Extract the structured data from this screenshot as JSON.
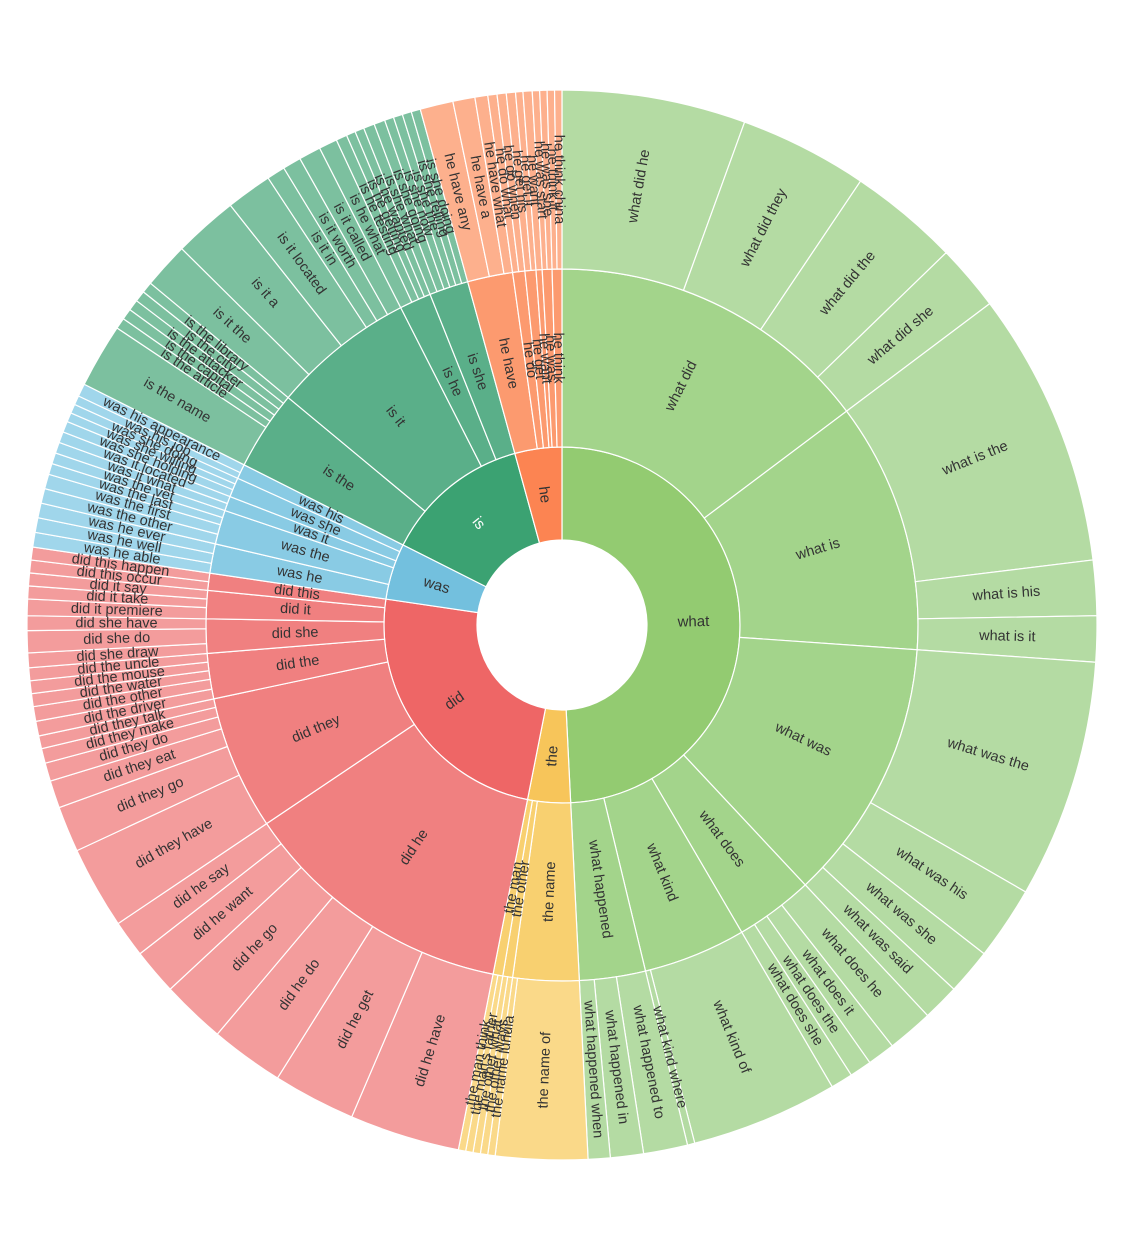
{
  "chart_data": {
    "type": "sunburst",
    "title": "",
    "colors": {
      "what": [
        "#93cb71",
        "#a3d48b",
        "#b4dba3"
      ],
      "the": [
        "#f7c55a",
        "#f8d070",
        "#fad989"
      ],
      "did": [
        "#ee6666",
        "#f08080",
        "#f39c9c"
      ],
      "was": [
        "#73c0de",
        "#89cbe4",
        "#a0d6eb"
      ],
      "is": [
        "#3ba272",
        "#5aaf89",
        "#7cc09f"
      ],
      "he": [
        "#fc8452",
        "#fc9a6f",
        "#fdb08d"
      ]
    },
    "tree": [
      {
        "name": "what",
        "children": [
          {
            "name": "what did",
            "children": [
              {
                "name": "what did he",
                "value": 10
              },
              {
                "name": "what did they",
                "value": 7
              },
              {
                "name": "what did the",
                "value": 6
              },
              {
                "name": "what did she",
                "value": 3.6
              }
            ]
          },
          {
            "name": "what is",
            "children": [
              {
                "name": "what is the",
                "value": 15
              },
              {
                "name": "what is his",
                "value": 3
              },
              {
                "name": "what is it",
                "value": 2.5
              }
            ]
          },
          {
            "name": "what was",
            "children": [
              {
                "name": "what was the",
                "value": 13
              },
              {
                "name": "what was his",
                "value": 4
              },
              {
                "name": "what was she",
                "value": 2.5
              },
              {
                "name": "what was said",
                "value": 2
              }
            ]
          },
          {
            "name": "what does",
            "children": [
              {
                "name": "what does he",
                "value": 2.5
              },
              {
                "name": "what does it",
                "value": 1.5
              },
              {
                "name": "what does the",
                "value": 1.2
              },
              {
                "name": "what does she",
                "value": 1.2
              }
            ]
          },
          {
            "name": "what kind",
            "children": [
              {
                "name": "what kind of",
                "value": 8
              },
              {
                "name": "what kind where",
                "value": 0.4
              }
            ]
          },
          {
            "name": "what happened",
            "children": [
              {
                "name": "what happened to",
                "value": 2.4
              },
              {
                "name": "what happened in",
                "value": 1.8
              },
              {
                "name": "what happened when",
                "value": 1.2
              }
            ]
          }
        ]
      },
      {
        "name": "the",
        "children": [
          {
            "name": "the name",
            "children": [
              {
                "name": "the name of",
                "value": 5
              },
              {
                "name": "the name lunula",
                "value": 0.4
              }
            ]
          },
          {
            "name": "the other",
            "children": [
              {
                "name": "the other ways",
                "value": 0.4
              },
              {
                "name": "the other what",
                "value": 0.4
              }
            ]
          },
          {
            "name": "the man",
            "children": [
              {
                "name": "the man's father",
                "value": 0.4
              },
              {
                "name": "the man think",
                "value": 0.4
              }
            ]
          }
        ]
      },
      {
        "name": "did",
        "children": [
          {
            "name": "did he",
            "children": [
              {
                "name": "did he have",
                "value": 6
              },
              {
                "name": "did he get",
                "value": 4.5
              },
              {
                "name": "did he do",
                "value": 4
              },
              {
                "name": "did he go",
                "value": 3.5
              },
              {
                "name": "did he want",
                "value": 2.5
              },
              {
                "name": "did he say",
                "value": 2
              }
            ]
          },
          {
            "name": "did they",
            "children": [
              {
                "name": "did they have",
                "value": 4.5
              },
              {
                "name": "did they go",
                "value": 2.5
              },
              {
                "name": "did they eat",
                "value": 1.5
              },
              {
                "name": "did they do",
                "value": 1
              },
              {
                "name": "did they make",
                "value": 0.8
              },
              {
                "name": "did they talk",
                "value": 0.7
              }
            ]
          },
          {
            "name": "did the",
            "children": [
              {
                "name": "did the driver",
                "value": 0.8
              },
              {
                "name": "did the other",
                "value": 0.8
              },
              {
                "name": "did the water",
                "value": 0.7
              },
              {
                "name": "did the mouse",
                "value": 0.7
              },
              {
                "name": "did the uncle",
                "value": 0.7
              }
            ]
          },
          {
            "name": "did she",
            "children": [
              {
                "name": "did she draw",
                "value": 0.8
              },
              {
                "name": "did she do",
                "value": 1.2
              },
              {
                "name": "did she have",
                "value": 0.8
              }
            ]
          },
          {
            "name": "did it",
            "children": [
              {
                "name": "did it premiere",
                "value": 0.9
              },
              {
                "name": "did it take",
                "value": 0.7
              },
              {
                "name": "did it say",
                "value": 0.7
              }
            ]
          },
          {
            "name": "did this",
            "children": [
              {
                "name": "did this occur",
                "value": 0.7
              },
              {
                "name": "did this happen",
                "value": 0.7
              }
            ]
          }
        ]
      },
      {
        "name": "was",
        "children": [
          {
            "name": "was he",
            "children": [
              {
                "name": "was he able",
                "value": 0.8
              },
              {
                "name": "was he well",
                "value": 0.8
              },
              {
                "name": "was he ever",
                "value": 0.8
              }
            ]
          },
          {
            "name": "was the",
            "children": [
              {
                "name": "was the other",
                "value": 0.8
              },
              {
                "name": "was the first",
                "value": 0.8
              },
              {
                "name": "was the last",
                "value": 0.6
              },
              {
                "name": "was the vet",
                "value": 0.6
              }
            ]
          },
          {
            "name": "was it",
            "children": [
              {
                "name": "was it what",
                "value": 0.6
              },
              {
                "name": "was it located",
                "value": 0.6
              }
            ]
          },
          {
            "name": "was she",
            "children": [
              {
                "name": "was she holding",
                "value": 0.6
              },
              {
                "name": "was she willing",
                "value": 0.5
              },
              {
                "name": "was she doing",
                "value": 0.5
              }
            ]
          },
          {
            "name": "was his",
            "children": [
              {
                "name": "was his job",
                "value": 0.5
              },
              {
                "name": "was his appearance",
                "value": 0.7
              }
            ]
          }
        ]
      },
      {
        "name": "is",
        "children": [
          {
            "name": "is the",
            "children": [
              {
                "name": "is the name",
                "value": 3.5
              },
              {
                "name": "is the article",
                "value": 0.6
              },
              {
                "name": "is the capital",
                "value": 0.6
              },
              {
                "name": "is the attacker",
                "value": 0.6
              },
              {
                "name": "is the city",
                "value": 0.6
              },
              {
                "name": "is the library",
                "value": 0.6
              }
            ]
          },
          {
            "name": "is it",
            "children": [
              {
                "name": "is it the",
                "value": 2.5
              },
              {
                "name": "is it a",
                "value": 3.5
              },
              {
                "name": "is it located",
                "value": 2.5
              },
              {
                "name": "is it in",
                "value": 1
              },
              {
                "name": "is it worth",
                "value": 1
              },
              {
                "name": "is it called",
                "value": 1.2
              }
            ]
          },
          {
            "name": "is he",
            "children": [
              {
                "name": "is he what",
                "value": 1
              },
              {
                "name": "is he testing",
                "value": 0.6
              },
              {
                "name": "is he getting",
                "value": 0.5
              },
              {
                "name": "is he wanted",
                "value": 0.5
              }
            ]
          },
          {
            "name": "is she",
            "children": [
              {
                "name": "is she what",
                "value": 0.6
              },
              {
                "name": "is she going",
                "value": 0.6
              },
              {
                "name": "is she now",
                "value": 0.5
              },
              {
                "name": "is she the",
                "value": 0.5
              },
              {
                "name": "is she telling",
                "value": 0.5
              },
              {
                "name": "is she doing",
                "value": 0.5
              }
            ]
          }
        ]
      },
      {
        "name": "he",
        "children": [
          {
            "name": "he have",
            "children": [
              {
                "name": "he have any",
                "value": 1.8
              },
              {
                "name": "he have a",
                "value": 1.2
              },
              {
                "name": "he have what",
                "value": 0.7
              }
            ]
          },
          {
            "name": "he do",
            "children": [
              {
                "name": "he do what",
                "value": 0.5
              },
              {
                "name": "he do when",
                "value": 0.5
              }
            ]
          },
          {
            "name": "he get",
            "children": [
              {
                "name": "he get his",
                "value": 0.5
              },
              {
                "name": "he get it",
                "value": 0.4
              }
            ]
          },
          {
            "name": "he want",
            "children": [
              {
                "name": "he want",
                "value": 0.5
              }
            ]
          },
          {
            "name": "he was",
            "children": [
              {
                "name": "he was start",
                "value": 0.4
              },
              {
                "name": "he was she",
                "value": 0.4
              }
            ]
          },
          {
            "name": "he think",
            "children": [
              {
                "name": "he think it",
                "value": 0.4
              },
              {
                "name": "he think china",
                "value": 0.4
              }
            ]
          }
        ]
      }
    ]
  }
}
